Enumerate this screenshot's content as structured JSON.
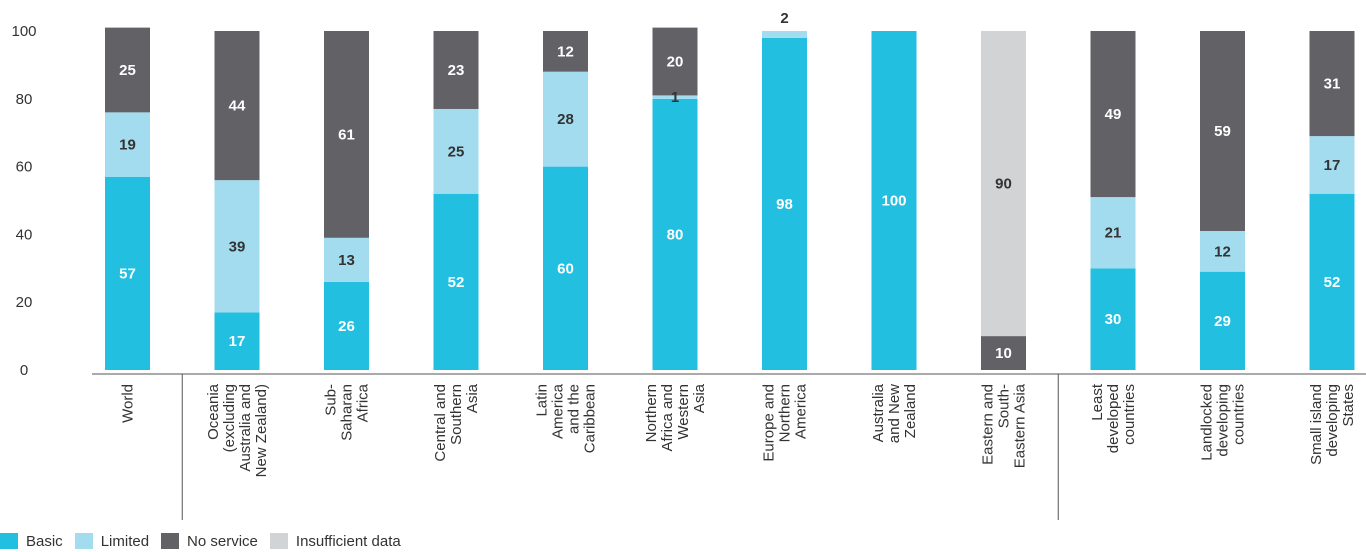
{
  "colors": {
    "basic": "#22bfe0",
    "limited": "#a3dcef",
    "no_service": "#616166",
    "insufficient": "#d2d3d5",
    "axis": "#555555"
  },
  "legend": [
    {
      "key": "basic",
      "label": "Basic"
    },
    {
      "key": "limited",
      "label": "Limited"
    },
    {
      "key": "no_service",
      "label": "No service"
    },
    {
      "key": "insufficient",
      "label": "Insufficient data"
    }
  ],
  "chart_data": {
    "type": "bar",
    "stacked": true,
    "ylim": [
      0,
      100
    ],
    "yticks": [
      0,
      20,
      40,
      60,
      80,
      100
    ],
    "grid": false,
    "legend_position": "bottom-left",
    "categories": [
      [
        "World"
      ],
      [
        "Oceania",
        "(excluding",
        "Australia and",
        "New Zealand)"
      ],
      [
        "Sub-",
        "Saharan",
        "Africa"
      ],
      [
        "Central and",
        "Southern",
        "Asia"
      ],
      [
        "Latin",
        "America",
        "and the",
        "Caribbean"
      ],
      [
        "Northern",
        "Africa and",
        "Western",
        "Asia"
      ],
      [
        "Europe and",
        "Northern",
        "America"
      ],
      [
        "Australia",
        "and New",
        "Zealand"
      ],
      [
        "Eastern and",
        "South-",
        "Eastern Asia"
      ],
      [
        "Least",
        "developed",
        "countries"
      ],
      [
        "Landlocked",
        "developing",
        "countries"
      ],
      [
        "Small island",
        "developing",
        "States"
      ]
    ],
    "series": [
      {
        "name": "Basic",
        "key": "basic",
        "values": [
          57,
          17,
          26,
          52,
          60,
          80,
          98,
          100,
          0,
          30,
          29,
          52
        ]
      },
      {
        "name": "Limited",
        "key": "limited",
        "values": [
          19,
          39,
          13,
          25,
          28,
          1,
          2,
          0,
          0,
          21,
          12,
          17
        ]
      },
      {
        "name": "No service",
        "key": "no_service",
        "values": [
          25,
          44,
          61,
          23,
          12,
          20,
          0,
          0,
          10,
          49,
          59,
          31
        ]
      },
      {
        "name": "Insufficient data",
        "key": "insufficient",
        "values": [
          0,
          0,
          0,
          0,
          0,
          0,
          0,
          0,
          90,
          0,
          0,
          0
        ]
      }
    ],
    "labels": [
      {
        "basic": "57",
        "limited": "19",
        "no_service": "25"
      },
      {
        "basic": "17",
        "limited": "39",
        "no_service": "44"
      },
      {
        "basic": "26",
        "limited": "13",
        "no_service": "61"
      },
      {
        "basic": "52",
        "limited": "25",
        "no_service": "23"
      },
      {
        "basic": "60",
        "limited": "28",
        "no_service": "12"
      },
      {
        "basic": "80",
        "limited": "1",
        "no_service": "20"
      },
      {
        "basic": "98",
        "limited": "2"
      },
      {
        "basic": "100"
      },
      {
        "insufficient": "90",
        "no_service": "10"
      },
      {
        "basic": "30",
        "limited": "21",
        "no_service": "49"
      },
      {
        "basic": "29",
        "limited": "12",
        "no_service": "59"
      },
      {
        "basic": "52",
        "limited": "17",
        "no_service": "31"
      }
    ],
    "group_separators_after": [
      0,
      8
    ]
  }
}
